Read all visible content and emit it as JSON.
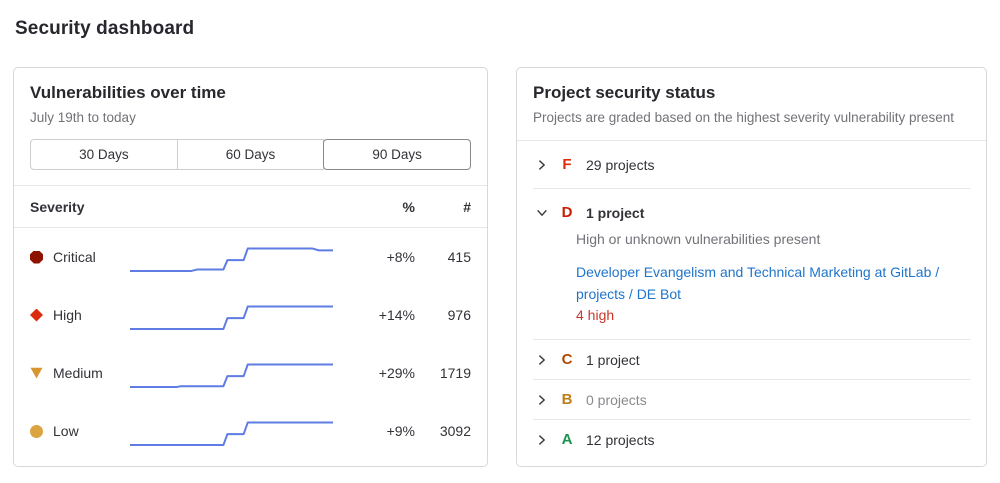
{
  "page": {
    "title": "Security dashboard"
  },
  "vuln_card": {
    "title": "Vulnerabilities over time",
    "subtitle": "July 19th to today",
    "range_buttons": [
      {
        "label": "30 Days",
        "selected": false
      },
      {
        "label": "60 Days",
        "selected": false
      },
      {
        "label": "90 Days",
        "selected": true
      }
    ],
    "table_headers": {
      "severity": "Severity",
      "percent": "%",
      "count": "#"
    },
    "rows": [
      {
        "severity": "Critical",
        "icon": "severity-critical-icon",
        "color": "#8d1300",
        "percent": "+8%",
        "count": "415"
      },
      {
        "severity": "High",
        "icon": "severity-high-icon",
        "color": "#dd2b0e",
        "percent": "+14%",
        "count": "976"
      },
      {
        "severity": "Medium",
        "icon": "severity-medium-icon",
        "color": "#d99530",
        "percent": "+29%",
        "count": "1719"
      },
      {
        "severity": "Low",
        "icon": "severity-low-icon",
        "color": "#dba440",
        "percent": "+9%",
        "count": "3092"
      }
    ]
  },
  "chart_data": {
    "type": "line",
    "title": "Vulnerabilities over time",
    "subtitle": "July 19th to today",
    "x_range": "last 90 days (July 19th to today)",
    "line_color": "#5e7ce3",
    "legend_position": "none",
    "grid": false,
    "series": [
      {
        "name": "Critical",
        "delta_percent": "+8%",
        "current_count": 415,
        "points": [
          [
            0,
            10
          ],
          [
            30,
            10
          ],
          [
            33,
            15
          ],
          [
            46,
            15
          ],
          [
            48,
            48
          ],
          [
            56,
            48
          ],
          [
            58,
            88
          ],
          [
            90,
            88
          ],
          [
            93,
            82
          ],
          [
            100,
            82
          ]
        ]
      },
      {
        "name": "High",
        "delta_percent": "+14%",
        "current_count": 976,
        "points": [
          [
            0,
            10
          ],
          [
            46,
            10
          ],
          [
            48,
            48
          ],
          [
            56,
            48
          ],
          [
            58,
            88
          ],
          [
            100,
            88
          ]
        ]
      },
      {
        "name": "Medium",
        "delta_percent": "+29%",
        "current_count": 1719,
        "points": [
          [
            0,
            10
          ],
          [
            23,
            10
          ],
          [
            25,
            13
          ],
          [
            46,
            13
          ],
          [
            48,
            48
          ],
          [
            56,
            48
          ],
          [
            58,
            88
          ],
          [
            100,
            88
          ]
        ]
      },
      {
        "name": "Low",
        "delta_percent": "+9%",
        "current_count": 3092,
        "points": [
          [
            0,
            10
          ],
          [
            46,
            10
          ],
          [
            48,
            48
          ],
          [
            56,
            48
          ],
          [
            58,
            88
          ],
          [
            100,
            88
          ]
        ]
      }
    ]
  },
  "status_card": {
    "title": "Project security status",
    "subtitle": "Projects are graded based on the highest severity vulnerability present",
    "grades": [
      {
        "letter": "F",
        "color": "#dd2b0e",
        "count_label": "29 projects",
        "label_color": "#333238",
        "expanded": false
      },
      {
        "letter": "D",
        "color": "#c91c00",
        "count_label": "1 project",
        "label_color": "#333238",
        "expanded": true,
        "description": "High or unknown vulnerabilities present",
        "project_link": "Developer Evangelism and Technical Marketing at GitLab / projects / DE Bot",
        "link_color": "#1f75cb",
        "finding": "4 high",
        "finding_color": "#c9372c"
      },
      {
        "letter": "C",
        "color": "#b24800",
        "count_label": "1 project",
        "label_color": "#333238",
        "expanded": false
      },
      {
        "letter": "B",
        "color": "#bf7d15",
        "count_label": "0 projects",
        "label_color": "#89888d",
        "expanded": false
      },
      {
        "letter": "A",
        "color": "#1a9450",
        "count_label": "12 projects",
        "label_color": "#333238",
        "expanded": false
      }
    ]
  }
}
